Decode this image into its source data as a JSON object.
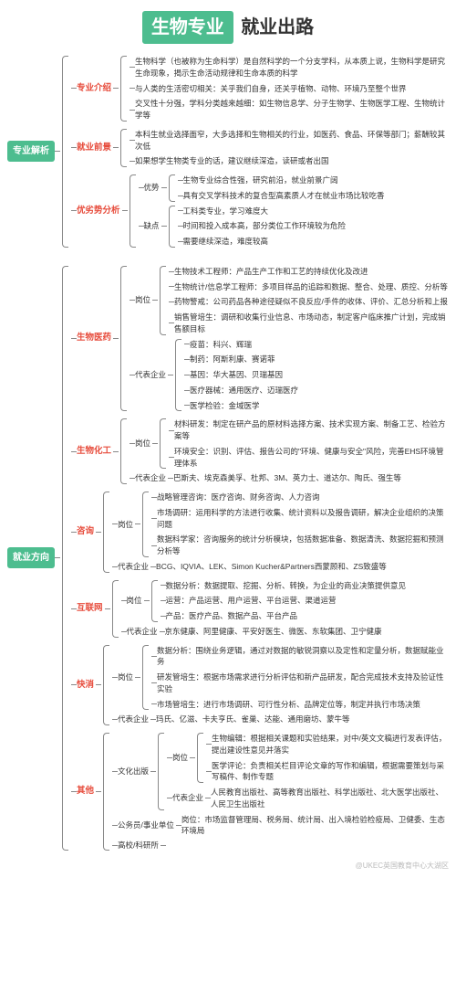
{
  "title": {
    "boxed": "生物专业",
    "plain": "就业出路"
  },
  "colors": {
    "accent": "#4dbd8f",
    "highlight": "#e74c3c",
    "text": "#333333",
    "line": "#888888"
  },
  "roots": [
    {
      "label": "专业解析",
      "children": [
        {
          "label": "专业介绍",
          "items": [
            "生物科学（也被称为生命科学）是自然科学的一个分支学科，从本质上说，生物科学是研究生命现象，揭示生命活动规律和生命本质的科学",
            "与人类的生活密切相关：关乎我们自身，还关乎植物、动物、环境乃至整个世界",
            "交叉性十分强，学科分类越来越细：如生物信息学、分子生物学、生物医学工程、生物统计学等"
          ]
        },
        {
          "label": "就业前景",
          "items": [
            "本科生就业选择面窄，大多选择和生物相关的行业，如医药、食品、环保等部门；薪酬较其次低",
            "如果想学生物类专业的话，建议继续深造，读研或者出国"
          ]
        },
        {
          "label": "优劣势分析",
          "children": [
            {
              "label": "优势",
              "black": true,
              "items": [
                "生物专业综合性强，研究前沿，就业前景广阔",
                "具有交叉学科技术的复合型高素质人才在就业市场比较吃香"
              ]
            },
            {
              "label": "缺点",
              "black": true,
              "items": [
                "工科类专业，学习难度大",
                "时间和投入成本高，部分类位工作环境较为危险",
                "需要继续深造，难度较高"
              ]
            }
          ]
        }
      ]
    },
    {
      "label": "就业方向",
      "children": [
        {
          "label": "生物医药",
          "children": [
            {
              "label": "岗位",
              "black": true,
              "items": [
                "生物技术工程师：产品生产工作和工艺的持续优化及改进",
                "生物统计/信息学工程师：多项目样品的追踪和数据、整合、处理、质控、分析等",
                "药物警戒：公司药品各种途径疑似不良反应/手件的收体、评价、汇总分析和上报",
                "销售管培生：调研和收集行业信息、市场动态，制定客户临床推广计划，完成销售额目标"
              ]
            },
            {
              "label": "代表企业",
              "black": true,
              "children": [
                {
                  "label": "疫苗",
                  "tiny": true,
                  "text": "科兴、辉瑞"
                },
                {
                  "label": "制药",
                  "tiny": true,
                  "text": "阿斯利康、赛诺菲"
                },
                {
                  "label": "基因",
                  "tiny": true,
                  "text": "华大基因、贝瑞基因"
                },
                {
                  "label": "医疗器械",
                  "tiny": true,
                  "text": "通用医疗、迈瑞医疗"
                },
                {
                  "label": "医学检验",
                  "tiny": true,
                  "text": "金域医学"
                }
              ]
            }
          ]
        },
        {
          "label": "生物化工",
          "children": [
            {
              "label": "岗位",
              "black": true,
              "items": [
                "材料研发：制定在研产品的原材料选择方案、技术实现方案、制备工艺、检验方案等",
                "环境安全：识别、评估、报告公司的\"环境、健康与安全\"风险，完善EHS环境管理体系"
              ]
            },
            {
              "label": "代表企业",
              "black": true,
              "text": "巴斯夫、埃克森美孚、杜邦、3M、英力士、道达尔、陶氏、强生等"
            }
          ]
        },
        {
          "label": "咨询",
          "children": [
            {
              "label": "岗位",
              "black": true,
              "items": [
                "战略管理咨询：医疗咨询、财务咨询、人力咨询",
                "市场调研：运用科学的方法进行收集、统计资料以及报告调研，解决企业组织的决策问题",
                "数据科学家：咨询服务的统计分析模块，包括数据准备、数据清洗、数据挖掘和预测分析等"
              ]
            },
            {
              "label": "代表企业",
              "black": true,
              "text": "BCG、IQVIA、LEK、Simon Kucher&Partners西蒙顾和、ZS致盛等"
            }
          ]
        },
        {
          "label": "互联网",
          "children": [
            {
              "label": "岗位",
              "black": true,
              "items": [
                "数据分析：数据提取、挖掘、分析、转换，为企业的商业决策提供意见",
                "运营：产品运营、用户运营、平台运营、渠道运营",
                "产品：医疗产品、数据产品、平台产品"
              ]
            },
            {
              "label": "代表企业",
              "black": true,
              "text": "京东健康、阿里健康、平安好医生、微医、东软集团、卫宁健康"
            }
          ]
        },
        {
          "label": "快消",
          "children": [
            {
              "label": "岗位",
              "black": true,
              "items": [
                "数据分析：围绕业务逻辑，通过对数据的敏锐洞察以及定性和定量分析，数据赋能业务",
                "研发管培生：根据市场需求进行分析评估和新产品研发，配合完成技术支持及验证性实验",
                "市场管培生：进行市场调研、可行性分析、品牌定位等，制定并执行市场决策"
              ]
            },
            {
              "label": "代表企业",
              "black": true,
              "text": "玛氏、亿滋、卡夫亨氏、雀巢、达能、通用磨坊、蒙牛等"
            }
          ]
        },
        {
          "label": "其他",
          "children": [
            {
              "label": "文化出版",
              "black": true,
              "children": [
                {
                  "label": "岗位",
                  "black": true,
                  "items": [
                    "生物编辑：根据相关课题和实验结果，对中/英文文稿进行发表评估，提出建设性意见并落实",
                    "医学评论：负责相关栏目评论文章的写作和编辑，根据需要策划与采写稿件、制作专题"
                  ]
                },
                {
                  "label": "代表企业",
                  "black": true,
                  "text": "人民教育出版社、高等教育出版社、科学出版社、北大医学出版社、人民卫生出版社"
                }
              ]
            },
            {
              "label": "公务员/事业单位",
              "black": true,
              "text": "岗位：市场监督管理局、税务局、统计局、出入境检验检疫局、卫健委、生态环境局"
            },
            {
              "label": "高校/科研所",
              "black": true,
              "text": ""
            }
          ]
        }
      ]
    }
  ],
  "footer": "@UKEC英国教育中心大湖区"
}
